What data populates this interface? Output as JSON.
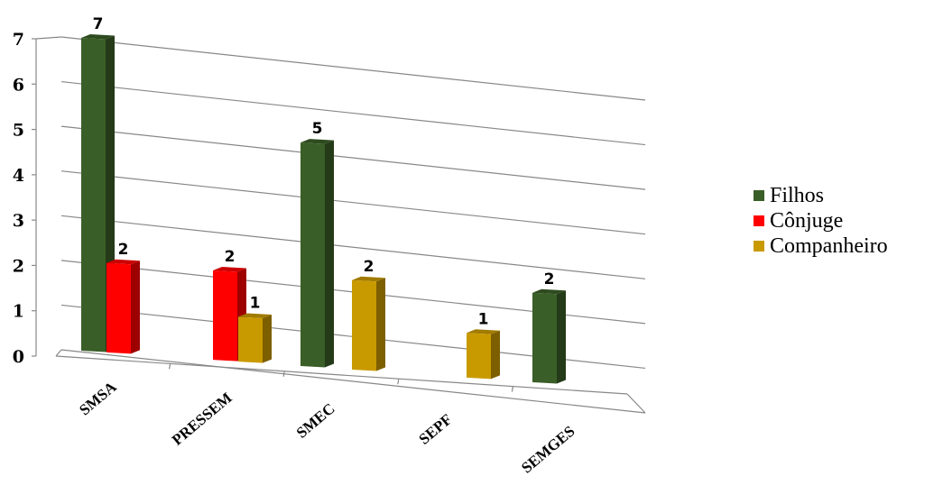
{
  "chart_data": {
    "type": "bar",
    "style": "3d-column",
    "categories": [
      "SMSA",
      "PRESSEM",
      "SMEC",
      "SEPF",
      "SEMGES"
    ],
    "series": [
      {
        "name": "Filhos",
        "color": "#3a5e27",
        "values": [
          7,
          null,
          5,
          null,
          2
        ]
      },
      {
        "name": "Cônjuge",
        "color": "#ff0000",
        "values": [
          2,
          2,
          null,
          null,
          null
        ]
      },
      {
        "name": "Companheiro",
        "color": "#c99a00",
        "values": [
          null,
          1,
          2,
          1,
          null
        ]
      }
    ],
    "y_ticks": [
      "0",
      "1",
      "2",
      "3",
      "4",
      "5",
      "6",
      "7"
    ],
    "ylim": [
      0,
      7
    ],
    "grid": true,
    "legend_position": "right",
    "data_labels": [
      {
        "category": "SMSA",
        "series": "Filhos",
        "text": "7"
      },
      {
        "category": "SMSA",
        "series": "Cônjuge",
        "text": "2"
      },
      {
        "category": "PRESSEM",
        "series": "Cônjuge",
        "text": "2"
      },
      {
        "category": "PRESSEM",
        "series": "Companheiro",
        "text": "1"
      },
      {
        "category": "SMEC",
        "series": "Filhos",
        "text": "5"
      },
      {
        "category": "SMEC",
        "series": "Companheiro",
        "text": "2"
      },
      {
        "category": "SEPF",
        "series": "Companheiro",
        "text": "1"
      },
      {
        "category": "SEMGES",
        "series": "Filhos",
        "text": "2"
      }
    ]
  }
}
